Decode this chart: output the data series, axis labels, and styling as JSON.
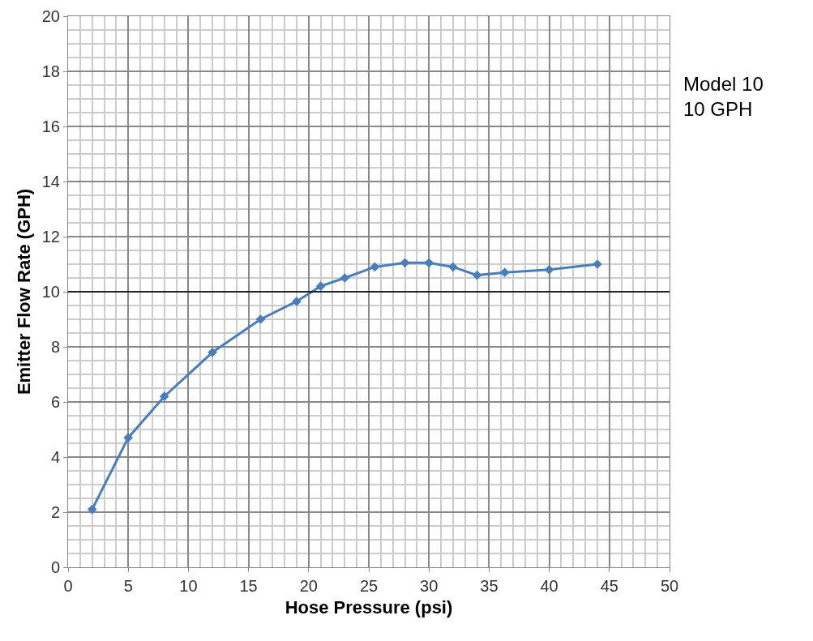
{
  "chart_data": {
    "type": "line",
    "xlabel": "Hose Pressure (psi)",
    "ylabel": "Emitter Flow Rate (GPH)",
    "x": [
      2,
      5,
      8,
      12,
      16,
      19,
      21,
      23,
      25.5,
      28,
      30,
      32,
      34,
      36.3,
      40,
      44
    ],
    "series": [
      {
        "color": "#4a7ebb",
        "values": [
          2.1,
          4.7,
          6.2,
          7.8,
          9.0,
          9.65,
          10.2,
          10.5,
          10.9,
          11.05,
          11.05,
          10.9,
          10.6,
          10.7,
          10.8,
          11.0
        ]
      }
    ],
    "xlim": [
      0,
      50
    ],
    "xticks": [
      0,
      5,
      10,
      15,
      20,
      25,
      30,
      35,
      40,
      45,
      50
    ],
    "ylim": [
      0,
      20
    ],
    "yticks": [
      0,
      2,
      4,
      6,
      8,
      10,
      12,
      14,
      16,
      18,
      20
    ],
    "grid": true,
    "marker": "diamond",
    "line_style": "solid",
    "ref_lines": [
      {
        "axis": "y",
        "value": 10,
        "color": "#000000"
      }
    ],
    "annotations": [
      "Model 10\n10 GPH"
    ]
  }
}
